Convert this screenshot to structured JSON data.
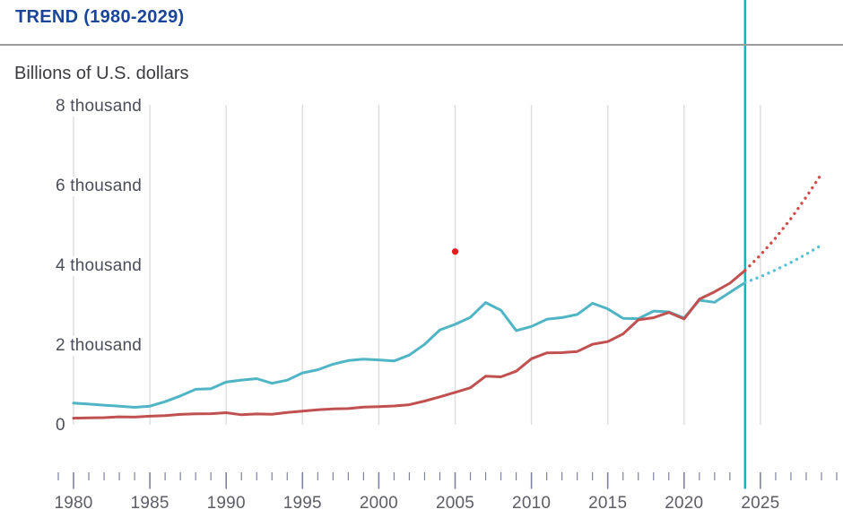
{
  "header": {
    "title": "TREND (1980-2029)",
    "subtitle": "Billions of U.S. dollars"
  },
  "colors": {
    "title": "#1b449b",
    "rule": "#9c9c9c",
    "subtitle": "#3b3b40",
    "y_label": "#4b4e59",
    "x_label": "#5c5d66",
    "tick": "#7e81a0",
    "gridline": "#dedede",
    "series_blue": "#4fb5c5",
    "series_red": "#c05150",
    "projection_blue": "#55c1d6",
    "projection_red": "#d04b49",
    "divider": "#12b3c5",
    "outlier": "#e81c1f"
  },
  "chart_data": {
    "type": "line",
    "title": "TREND (1980-2029)",
    "ylabel": "Billions of U.S. dollars",
    "ylim": [
      0,
      8000
    ],
    "yticks": [
      {
        "value": 0,
        "label": "0"
      },
      {
        "value": 2000,
        "label": "2 thousand"
      },
      {
        "value": 4000,
        "label": "4 thousand"
      },
      {
        "value": 6000,
        "label": "6 thousand"
      },
      {
        "value": 8000,
        "label": "8 thousand"
      }
    ],
    "xlim": [
      1979,
      2030.5
    ],
    "x_major_ticks": [
      1980,
      1985,
      1990,
      1995,
      2000,
      2005,
      2010,
      2015,
      2020,
      2025
    ],
    "x_minor_tick_range": [
      1979,
      2030
    ],
    "grid": "vertical",
    "legend": "none",
    "projection_divider_year": 2024,
    "series": [
      {
        "id": "blue_series",
        "color_key": "series_blue",
        "projection_color_key": "projection_blue",
        "start_year": 1980,
        "values": [
          565,
          540,
          515,
          489,
          461,
          489,
          601,
          745,
          910,
          927,
          1093,
          1142,
          1179,
          1061,
          1140,
          1321,
          1400,
          1539,
          1631,
          1666,
          1648,
          1621,
          1768,
          2038,
          2398,
          2538,
          2713,
          3084,
          2890,
          2382,
          2485,
          2663,
          2707,
          2784,
          3065,
          2927,
          2689,
          2680,
          2871,
          2851,
          2697,
          3141,
          3089,
          3340,
          3587
        ],
        "projection_start_year": 2024,
        "projection_values": [
          3587,
          3730,
          3900,
          4087,
          4295,
          4521
        ]
      },
      {
        "id": "red_series",
        "color_key": "series_red",
        "projection_color_key": "projection_red",
        "start_year": 1980,
        "values": [
          189,
          196,
          203,
          222,
          215,
          237,
          252,
          283,
          299,
          301,
          326,
          274,
          293,
          284,
          333,
          366,
          399,
          423,
          428,
          466,
          477,
          494,
          524,
          618,
          722,
          834,
          949,
          1239,
          1224,
          1365,
          1676,
          1823,
          1828,
          1857,
          2039,
          2104,
          2295,
          2651,
          2703,
          2836,
          2672,
          3167,
          3353,
          3568,
          3889
        ],
        "projection_start_year": 2024,
        "projection_values": [
          3889,
          4272,
          4702,
          5185,
          5726,
          6307
        ]
      }
    ],
    "outlier_point": {
      "year": 2005,
      "value": 4360
    }
  }
}
